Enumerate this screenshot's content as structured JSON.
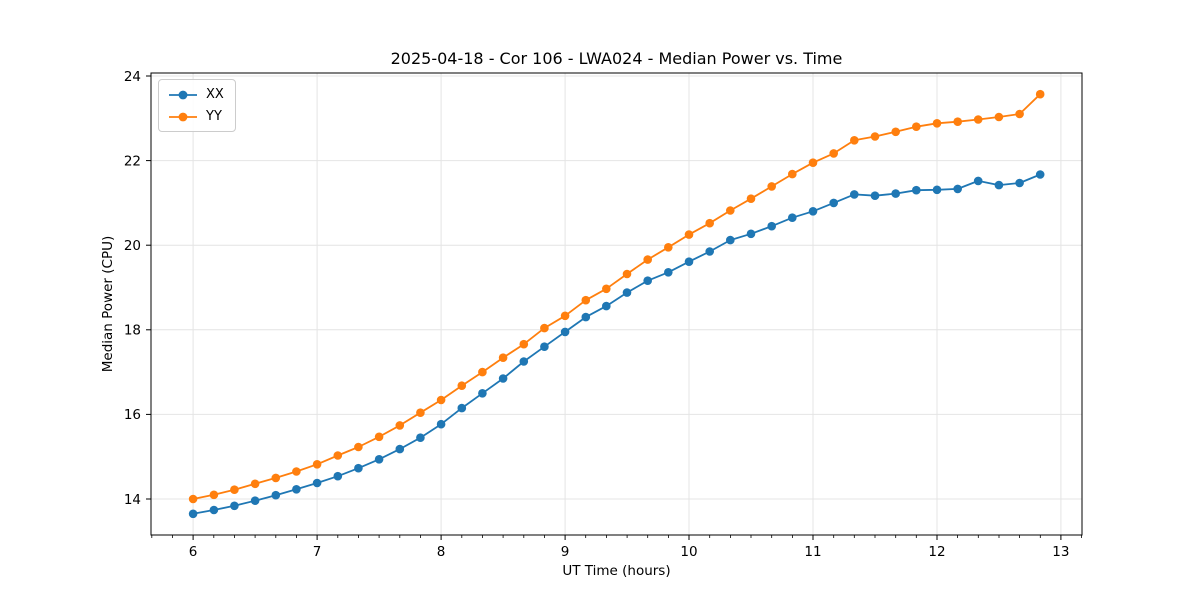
{
  "colors": {
    "background": "#ffffff",
    "grid": "#e4e4e4",
    "axis": "#000000",
    "tick_label": "#000000",
    "series_xx": "#1f77b4",
    "series_yy": "#ff7f0e"
  },
  "chart_data": {
    "type": "line",
    "title": "2025-04-18 - Cor 106 - LWA024 - Median Power vs. Time",
    "xlabel": "UT Time (hours)",
    "ylabel": "Median Power (CPU)",
    "xlim": [
      5.66,
      13.17
    ],
    "ylim": [
      13.15,
      24.07
    ],
    "xticks": [
      6,
      7,
      8,
      9,
      10,
      11,
      12,
      13
    ],
    "yticks": [
      14,
      16,
      18,
      20,
      22,
      24
    ],
    "x_minor_tick_step": 0.16667,
    "grid": true,
    "legend_position": "upper left",
    "x": [
      6.0,
      6.167,
      6.333,
      6.5,
      6.667,
      6.833,
      7.0,
      7.167,
      7.333,
      7.5,
      7.667,
      7.833,
      8.0,
      8.167,
      8.333,
      8.5,
      8.667,
      8.833,
      9.0,
      9.167,
      9.333,
      9.5,
      9.667,
      9.833,
      10.0,
      10.167,
      10.333,
      10.5,
      10.667,
      10.833,
      11.0,
      11.167,
      11.333,
      11.5,
      11.667,
      11.833,
      12.0,
      12.167,
      12.333,
      12.5,
      12.667,
      12.833
    ],
    "series": [
      {
        "name": "XX",
        "color": "#1f77b4",
        "marker": "circle",
        "values": [
          13.65,
          13.74,
          13.84,
          13.96,
          14.09,
          14.23,
          14.38,
          14.54,
          14.73,
          14.94,
          15.18,
          15.45,
          15.77,
          16.15,
          16.5,
          16.85,
          17.25,
          17.6,
          17.95,
          18.3,
          18.56,
          18.88,
          19.16,
          19.36,
          19.61,
          19.85,
          20.12,
          20.27,
          20.45,
          20.65,
          20.8,
          21.0,
          21.2,
          21.17,
          21.22,
          21.3,
          21.31,
          21.33,
          21.52,
          21.42,
          21.47,
          21.67
        ]
      },
      {
        "name": "YY",
        "color": "#ff7f0e",
        "marker": "circle",
        "values": [
          14.0,
          14.1,
          14.22,
          14.36,
          14.5,
          14.65,
          14.82,
          15.03,
          15.23,
          15.47,
          15.74,
          16.04,
          16.34,
          16.68,
          17.0,
          17.34,
          17.66,
          18.04,
          18.33,
          18.7,
          18.97,
          19.32,
          19.66,
          19.95,
          20.25,
          20.52,
          20.82,
          21.1,
          21.39,
          21.68,
          21.95,
          22.17,
          22.48,
          22.57,
          22.68,
          22.8,
          22.88,
          22.92,
          22.97,
          23.03,
          23.1,
          23.57
        ]
      }
    ]
  }
}
